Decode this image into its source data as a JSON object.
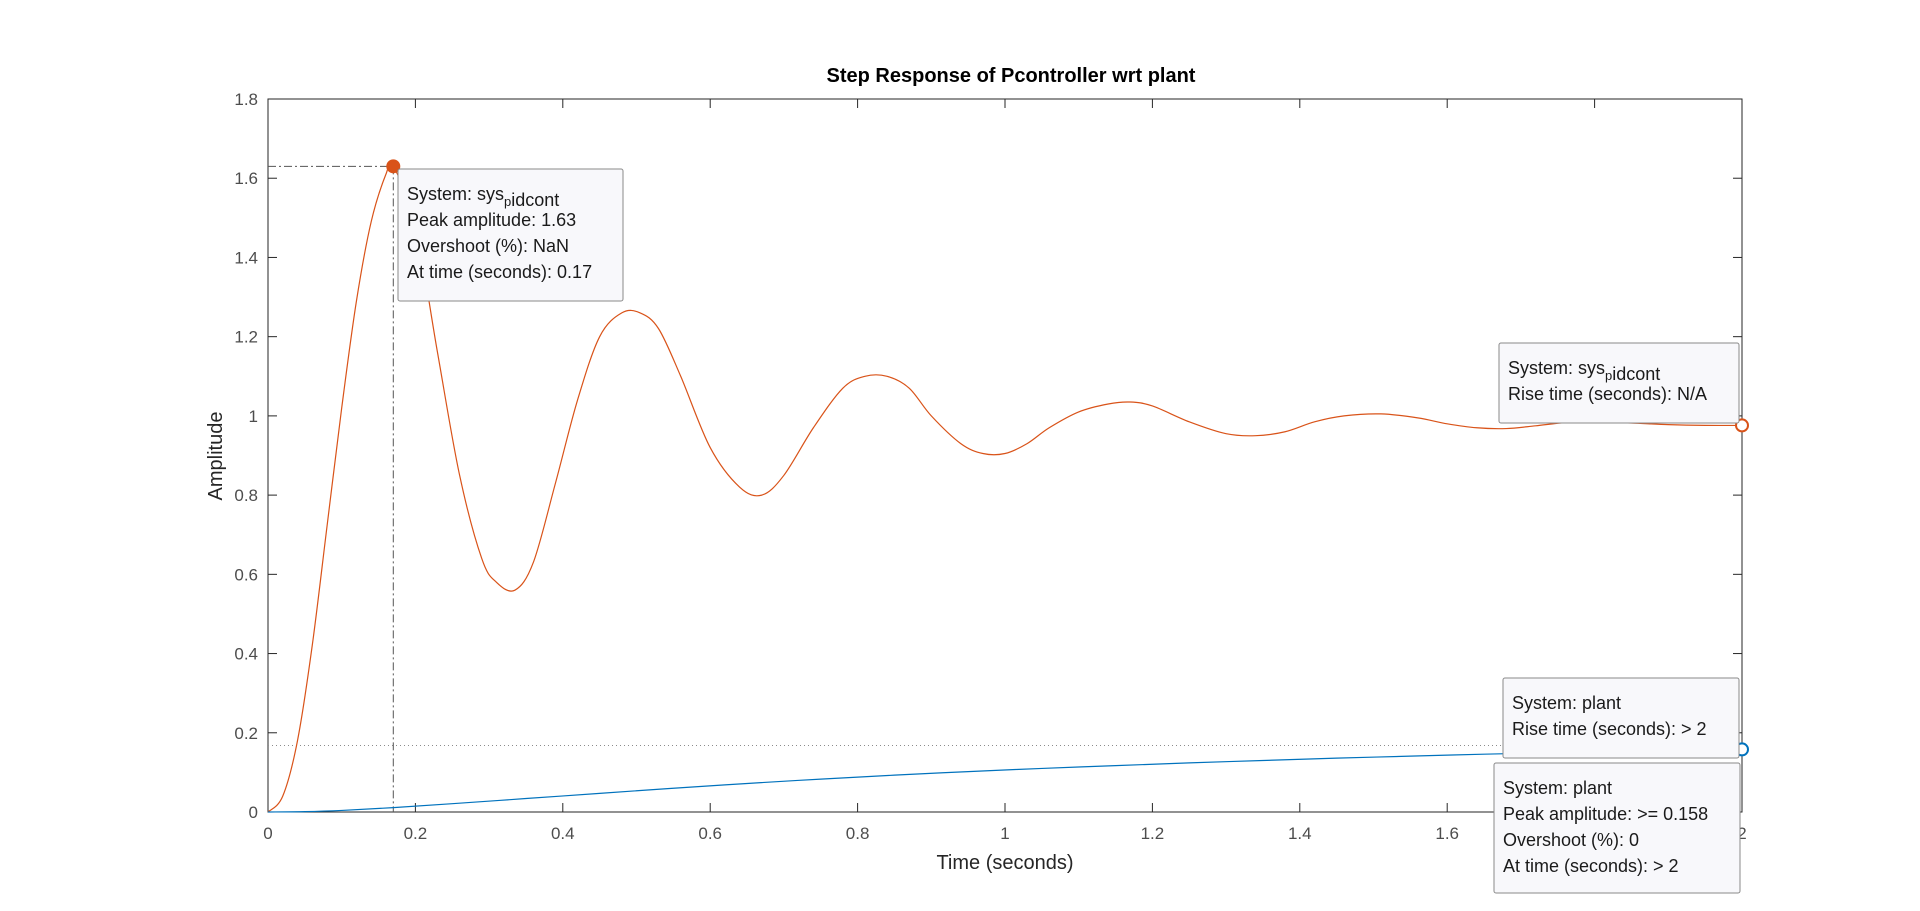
{
  "chart_data": {
    "type": "line",
    "title": "Step Response of Pcontroller wrt plant",
    "xlabel": "Time (seconds)",
    "ylabel": "Amplitude",
    "xlim": [
      0,
      2
    ],
    "ylim": [
      0,
      1.8
    ],
    "x_ticks": [
      0,
      0.2,
      0.4,
      0.6,
      0.8,
      1,
      1.2,
      1.4,
      1.6,
      1.8,
      2
    ],
    "x_tick_labels": [
      "0",
      "0.2",
      "0.4",
      "0.6",
      "0.8",
      "1",
      "1.2",
      "1.4",
      "1.6",
      "",
      "2"
    ],
    "y_ticks": [
      0,
      0.2,
      0.4,
      0.6,
      0.8,
      1,
      1.2,
      1.4,
      1.6,
      1.8
    ],
    "y_tick_labels": [
      "0",
      "0.2",
      "0.4",
      "0.6",
      "0.8",
      "1",
      "1.2",
      "1.4",
      "1.6",
      "1.8"
    ],
    "grid": false,
    "series": [
      {
        "key": "closed-loop",
        "color": "#d95319",
        "x": [
          0,
          0.02,
          0.04,
          0.06,
          0.08,
          0.1,
          0.12,
          0.14,
          0.16,
          0.17,
          0.2,
          0.23,
          0.26,
          0.29,
          0.31,
          0.335,
          0.36,
          0.39,
          0.42,
          0.45,
          0.48,
          0.505,
          0.53,
          0.56,
          0.6,
          0.64,
          0.67,
          0.7,
          0.74,
          0.78,
          0.81,
          0.84,
          0.87,
          0.9,
          0.94,
          0.97,
          1.0,
          1.03,
          1.06,
          1.1,
          1.14,
          1.17,
          1.2,
          1.25,
          1.3,
          1.34,
          1.38,
          1.42,
          1.46,
          1.51,
          1.56,
          1.6,
          1.64,
          1.68,
          1.72,
          1.76,
          1.8,
          1.85,
          1.9,
          1.95,
          2.0
        ],
        "y": [
          0,
          0.04,
          0.18,
          0.42,
          0.72,
          1.02,
          1.29,
          1.49,
          1.61,
          1.63,
          1.48,
          1.16,
          0.85,
          0.64,
          0.58,
          0.56,
          0.63,
          0.83,
          1.04,
          1.2,
          1.26,
          1.26,
          1.22,
          1.1,
          0.92,
          0.82,
          0.8,
          0.85,
          0.97,
          1.07,
          1.1,
          1.1,
          1.07,
          1.0,
          0.93,
          0.905,
          0.905,
          0.93,
          0.97,
          1.01,
          1.03,
          1.035,
          1.025,
          0.985,
          0.955,
          0.95,
          0.96,
          0.985,
          1.0,
          1.005,
          0.995,
          0.98,
          0.97,
          0.968,
          0.975,
          0.983,
          0.985,
          0.982,
          0.978,
          0.976,
          0.976
        ]
      },
      {
        "key": "plant",
        "color": "#0072bd",
        "x": [
          0,
          0.05,
          0.1,
          0.17,
          0.25,
          0.35,
          0.45,
          0.55,
          0.65,
          0.75,
          0.85,
          0.95,
          1.05,
          1.15,
          1.25,
          1.35,
          1.45,
          1.55,
          1.65,
          1.75,
          1.85,
          1.95,
          2.0
        ],
        "y": [
          0,
          0.001,
          0.004,
          0.011,
          0.021,
          0.034,
          0.047,
          0.06,
          0.072,
          0.083,
          0.093,
          0.102,
          0.11,
          0.117,
          0.124,
          0.13,
          0.136,
          0.141,
          0.146,
          0.15,
          0.154,
          0.157,
          0.158
        ]
      }
    ],
    "markers": [
      {
        "key": "peak",
        "x": 0.17,
        "y": 1.63,
        "filled": true,
        "color": "#d95319",
        "guide": true
      },
      {
        "key": "end-closed-loop",
        "x": 2.0,
        "y": 0.976,
        "filled": false,
        "color": "#d95319"
      },
      {
        "key": "end-plant",
        "x": 2.0,
        "y": 0.158,
        "filled": false,
        "color": "#0072bd"
      }
    ],
    "reference_lines": [
      {
        "key": "plant-steady-state",
        "y": 0.168,
        "style": "dotted"
      }
    ],
    "datatips": [
      {
        "key": "peak-tip",
        "lines": [
          {
            "parts": [
              {
                "text": "System: sys"
              },
              {
                "text": "p",
                "sub": true
              },
              {
                "text": "idcont"
              }
            ]
          },
          {
            "parts": [
              {
                "text": "Peak amplitude: 1.63"
              }
            ]
          },
          {
            "parts": [
              {
                "text": "Overshoot (%): NaN"
              }
            ]
          },
          {
            "parts": [
              {
                "text": "At time (seconds): 0.17"
              }
            ]
          }
        ]
      },
      {
        "key": "rise-tip",
        "lines": [
          {
            "parts": [
              {
                "text": "System: sys"
              },
              {
                "text": "p",
                "sub": true
              },
              {
                "text": "idcont"
              }
            ]
          },
          {
            "parts": [
              {
                "text": "Rise time (seconds): N/A"
              }
            ]
          }
        ]
      },
      {
        "key": "plant-rise-tip",
        "lines": [
          {
            "parts": [
              {
                "text": "System: plant"
              }
            ]
          },
          {
            "parts": [
              {
                "text": "Rise time (seconds): > 2"
              }
            ]
          }
        ]
      },
      {
        "key": "plant-peak-tip",
        "lines": [
          {
            "parts": [
              {
                "text": "System: plant"
              }
            ]
          },
          {
            "parts": [
              {
                "text": "Peak amplitude: >= 0.158"
              }
            ]
          },
          {
            "parts": [
              {
                "text": "Overshoot (%): 0"
              }
            ]
          },
          {
            "parts": [
              {
                "text": "At time (seconds): > 2"
              }
            ]
          }
        ]
      }
    ]
  }
}
